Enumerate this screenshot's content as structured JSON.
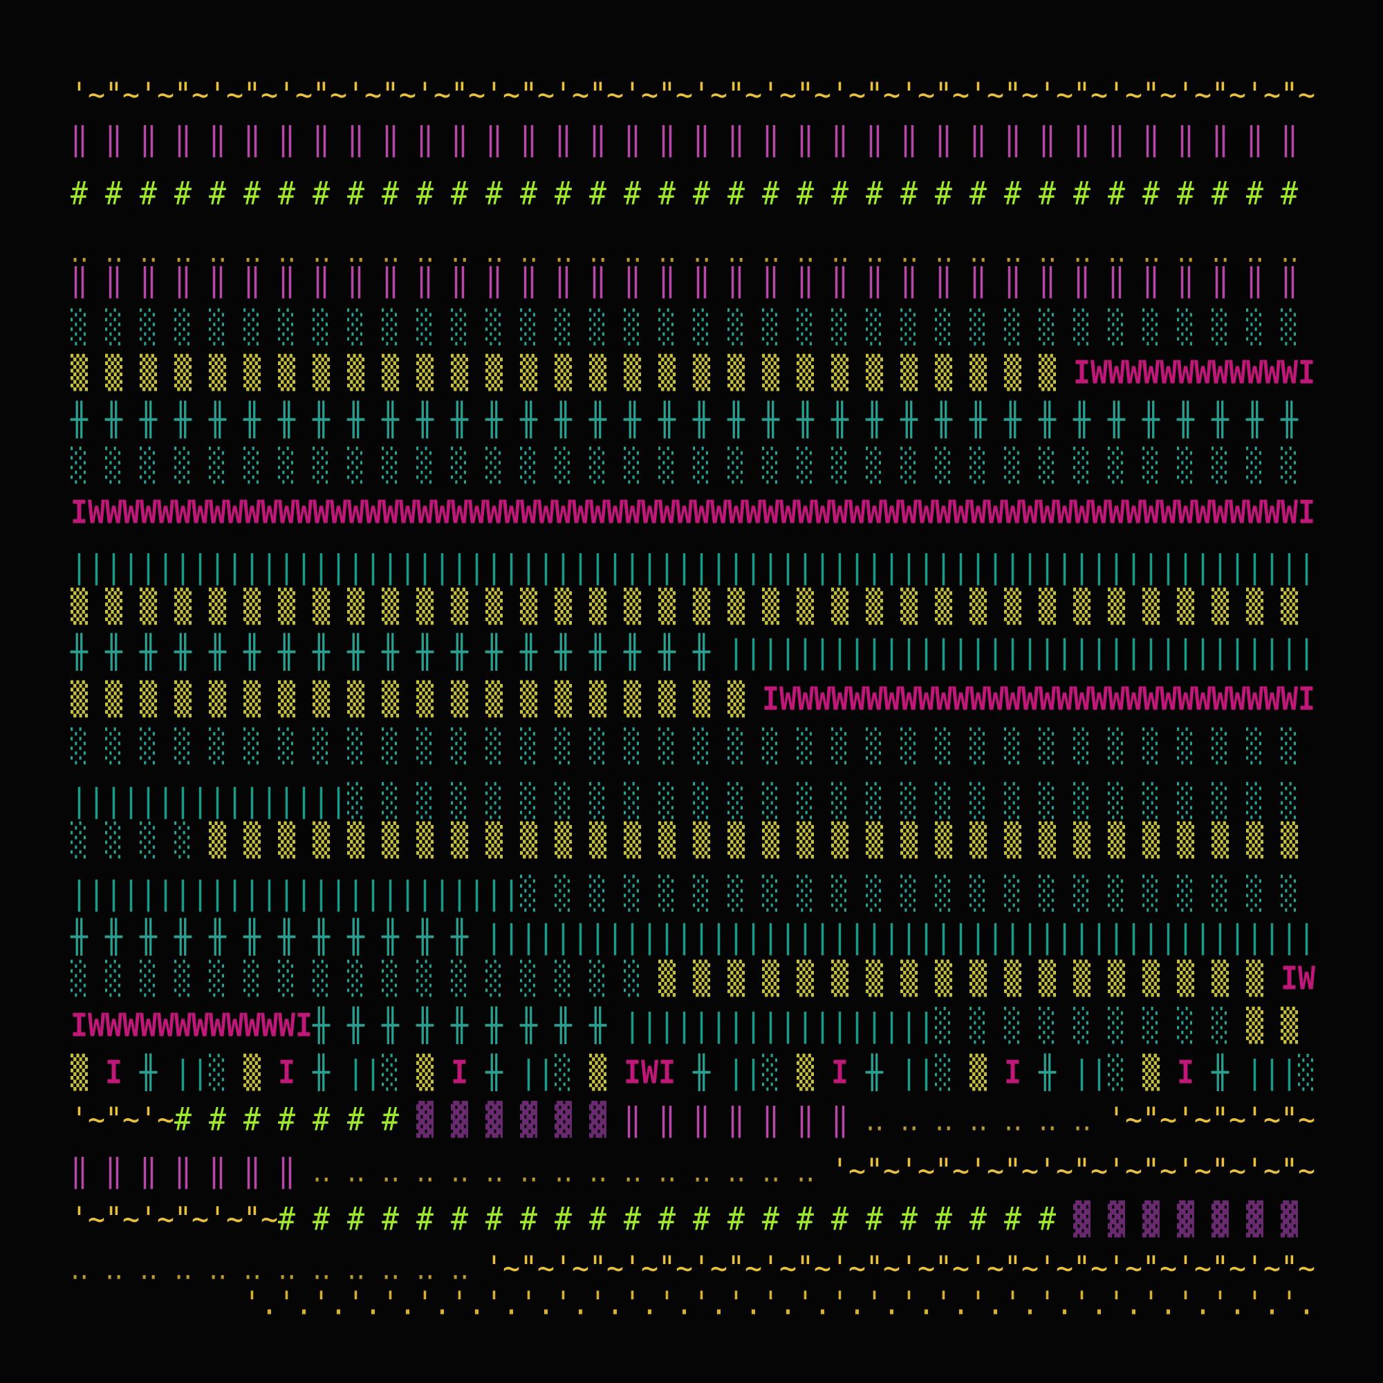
{
  "rows": [
    {
      "segments": [
        {
          "text": "'~\"~'~\"~'~\"~'~\"~'~\"~'~\"~'~\"~'~\"~'~\"~'~\"~'~\"~'~\"~'~\"~'~\"~'~\"~'~\"~'~\"~'~\"~",
          "color": "#e8c040"
        }
      ]
    },
    {
      "segments": [
        {
          "text": "‖ ‖ ‖ ‖ ‖ ‖ ‖ ‖ ‖ ‖ ‖ ‖ ‖ ‖ ‖ ‖ ‖ ‖ ‖ ‖ ‖ ‖ ‖ ‖ ‖ ‖ ‖ ‖ ‖ ‖ ‖ ‖ ‖ ‖ ‖ ‖ ",
          "color": "#b848a8"
        }
      ]
    },
    {
      "segments": [
        {
          "text": "# # # # # # # # # # # # # # # # # # # # # # # # # # # # # # # # # # # # ",
          "color": "#9ee82e"
        }
      ]
    },
    {
      "segments": [
        {
          "text": "‥ ‥ ‥ ‥ ‥ ‥ ‥ ‥ ‥ ‥ ‥ ‥ ‥ ‥ ‥ ‥ ‥ ‥ ‥ ‥ ‥ ‥ ‥ ‥ ‥ ‥ ‥ ‥ ‥ ‥ ‥ ‥ ‥ ‥ ‥ ‥ ",
          "color": "#b89a30"
        }
      ]
    },
    {
      "segments": [
        {
          "text": "‖ ‖ ‖ ‖ ‖ ‖ ‖ ‖ ‖ ‖ ‖ ‖ ‖ ‖ ‖ ‖ ‖ ‖ ‖ ‖ ‖ ‖ ‖ ‖ ‖ ‖ ‖ ‖ ‖ ‖ ‖ ‖ ‖ ‖ ‖ ‖ ",
          "color": "#b848a8"
        }
      ]
    },
    {
      "segments": [
        {
          "text": "░ ░ ░ ░ ░ ░ ░ ░ ░ ░ ░ ░ ░ ░ ░ ░ ░ ░ ░ ░ ░ ░ ░ ░ ░ ░ ░ ░ ░ ░ ░ ░ ░ ░ ░ ░ ",
          "color": "#2aa090"
        }
      ]
    },
    {
      "segments": [
        {
          "text": "▒ ▒ ▒ ▒ ▒ ▒ ▒ ▒ ▒ ▒ ▒ ▒ ▒ ▒ ▒ ▒ ▒ ▒ ▒ ▒ ▒ ▒ ▒ ▒ ▒ ▒ ▒ ▒ ▒ ",
          "color": "#c8c040"
        },
        {
          "text": "IWWWWWWWWWWWWI",
          "color": "#c01878"
        }
      ]
    },
    {
      "segments": [
        {
          "text": "╫ ╫ ╫ ╫ ╫ ╫ ╫ ╫ ╫ ╫ ╫ ╫ ╫ ╫ ╫ ╫ ╫ ╫ ╫ ╫ ╫ ╫ ╫ ╫ ╫ ╫ ╫ ╫ ╫ ╫ ╫ ╫ ╫ ╫ ╫ ╫ ",
          "color": "#2aa090"
        }
      ]
    },
    {
      "segments": [
        {
          "text": "░ ░ ░ ░ ░ ░ ░ ░ ░ ░ ░ ░ ░ ░ ░ ░ ░ ░ ░ ░ ░ ░ ░ ░ ░ ░ ░ ░ ░ ░ ░ ░ ░ ░ ░ ░ ",
          "color": "#2aa090"
        }
      ]
    },
    {
      "segments": [
        {
          "text": "IWWWWWWWWWWWWWWWWWWWWWWWWWWWWWWWWWWWWWWWWWWWWWWWWWWWWWWWWWWWWWWWWWWWWWWI",
          "color": "#c01878"
        }
      ]
    },
    {
      "segments": [
        {
          "text": "||||||||||||||||||||||||||||||||||||||||||||||||||||||||||||||||||||||||",
          "color": "#1a9a88"
        }
      ]
    },
    {
      "segments": [
        {
          "text": "▒ ▒ ▒ ▒ ▒ ▒ ▒ ▒ ▒ ▒ ▒ ▒ ▒ ▒ ▒ ▒ ▒ ▒ ▒ ▒ ▒ ▒ ▒ ▒ ▒ ▒ ▒ ▒ ▒ ▒ ▒ ▒ ▒ ▒ ▒ ▒ ",
          "color": "#c8c040"
        }
      ]
    },
    {
      "segments": [
        {
          "text": "╫ ╫ ╫ ╫ ╫ ╫ ╫ ╫ ╫ ╫ ╫ ╫ ╫ ╫ ╫ ╫ ╫ ╫ ╫ ",
          "color": "#2aa090"
        },
        {
          "text": "||||||||||||||||||||||||||||||||||",
          "color": "#1a9a88"
        }
      ]
    },
    {
      "segments": [
        {
          "text": "▒ ▒ ▒ ▒ ▒ ▒ ▒ ▒ ▒ ▒ ▒ ▒ ▒ ▒ ▒ ▒ ▒ ▒ ▒ ▒ ",
          "color": "#c8c040"
        },
        {
          "text": "IWWWWWWWWWWWWWWWWWWWWWWWWWWWWWWI",
          "color": "#c01878"
        }
      ]
    },
    {
      "segments": [
        {
          "text": "░ ░ ░ ░ ░ ░ ░ ░ ░ ░ ░ ░ ░ ░ ░ ░ ░ ░ ░ ░ ░ ░ ░ ░ ░ ░ ░ ░ ░ ░ ░ ░ ░ ░ ░ ░ ",
          "color": "#2aa090"
        }
      ]
    },
    {
      "segments": [
        {
          "text": "||||||||||||||||",
          "color": "#1a9a88"
        },
        {
          "text": "░ ░ ░ ░ ░ ░ ░ ░ ░ ░ ░ ░ ░ ░ ░ ░ ░ ░ ░ ░ ░ ░ ░ ░ ░ ░ ░ ░ ",
          "color": "#2aa090"
        }
      ]
    },
    {
      "segments": [
        {
          "text": "░ ░ ░ ░ ",
          "color": "#2aa090"
        },
        {
          "text": "▒ ▒ ▒ ▒ ▒ ▒ ▒ ▒ ▒ ▒ ▒ ▒ ▒ ▒ ▒ ▒ ▒ ▒ ▒ ▒ ▒ ▒ ▒ ▒ ▒ ▒ ▒ ▒ ▒ ▒ ▒ ▒ ",
          "color": "#c8c040"
        }
      ]
    },
    {
      "segments": [
        {
          "text": "||||||||||||||||||||||||||",
          "color": "#1a9a88"
        },
        {
          "text": "░ ░ ░ ░ ░ ░ ░ ░ ░ ░ ░ ░ ░ ░ ░ ░ ░ ░ ░ ░ ░ ░ ░ ",
          "color": "#2aa090"
        }
      ]
    },
    {
      "segments": [
        {
          "text": "╫ ╫ ╫ ╫ ╫ ╫ ╫ ╫ ╫ ╫ ╫ ╫ ",
          "color": "#2aa090"
        },
        {
          "text": "||||||||||||||||||||||||||||||||||||||||||||||||",
          "color": "#1a9a88"
        }
      ]
    },
    {
      "segments": [
        {
          "text": "░ ░ ░ ░ ░ ░ ░ ░ ░ ░ ░ ░ ░ ░ ░ ░ ░ ",
          "color": "#2aa090"
        },
        {
          "text": "▒ ▒ ▒ ▒ ▒ ▒ ▒ ▒ ▒ ▒ ▒ ▒ ▒ ▒ ▒ ▒ ▒ ▒ ",
          "color": "#c8c040"
        },
        {
          "text": "IW",
          "color": "#c01878"
        }
      ]
    },
    {
      "segments": [
        {
          "text": "IWWWWWWWWWWWWI",
          "color": "#c01878"
        },
        {
          "text": "╫ ╫ ╫ ╫ ╫ ╫ ╫ ╫ ╫ ",
          "color": "#2aa090"
        },
        {
          "text": "||||||||||||||||||",
          "color": "#1a9a88"
        },
        {
          "text": "░ ░ ░ ░ ░ ░ ░ ░ ░ ",
          "color": "#2aa090"
        },
        {
          "text": "▒ ▒ ",
          "color": "#c8c040"
        }
      ]
    },
    {
      "segments": [
        {
          "text": "▒ ",
          "color": "#c8c040"
        },
        {
          "text": "I ",
          "color": "#c01878"
        },
        {
          "text": "╫ ",
          "color": "#2aa090"
        },
        {
          "text": "||",
          "color": "#1a9a88"
        },
        {
          "text": "░ ",
          "color": "#2aa090"
        },
        {
          "text": "▒ ",
          "color": "#c8c040"
        },
        {
          "text": "I ",
          "color": "#c01878"
        },
        {
          "text": "╫ ",
          "color": "#2aa090"
        },
        {
          "text": "||",
          "color": "#1a9a88"
        },
        {
          "text": "░ ",
          "color": "#2aa090"
        },
        {
          "text": "▒ ",
          "color": "#c8c040"
        },
        {
          "text": "I ",
          "color": "#c01878"
        },
        {
          "text": "╫ ",
          "color": "#2aa090"
        },
        {
          "text": "||",
          "color": "#1a9a88"
        },
        {
          "text": "░ ",
          "color": "#2aa090"
        },
        {
          "text": "▒ ",
          "color": "#c8c040"
        },
        {
          "text": "IWI ",
          "color": "#c01878"
        },
        {
          "text": "╫ ",
          "color": "#2aa090"
        },
        {
          "text": "||",
          "color": "#1a9a88"
        },
        {
          "text": "░ ",
          "color": "#2aa090"
        },
        {
          "text": "▒ ",
          "color": "#c8c040"
        },
        {
          "text": "I ",
          "color": "#c01878"
        },
        {
          "text": "╫ ",
          "color": "#2aa090"
        },
        {
          "text": "||",
          "color": "#1a9a88"
        },
        {
          "text": "░ ",
          "color": "#2aa090"
        },
        {
          "text": "▒ ",
          "color": "#c8c040"
        },
        {
          "text": "I ",
          "color": "#c01878"
        },
        {
          "text": "╫ ",
          "color": "#2aa090"
        },
        {
          "text": "||",
          "color": "#1a9a88"
        },
        {
          "text": "░ ",
          "color": "#2aa090"
        },
        {
          "text": "▒ ",
          "color": "#c8c040"
        },
        {
          "text": "I ",
          "color": "#c01878"
        },
        {
          "text": "╫ ",
          "color": "#2aa090"
        },
        {
          "text": "|||",
          "color": "#1a9a88"
        },
        {
          "text": "░",
          "color": "#2aa090"
        }
      ]
    },
    {
      "segments": [
        {
          "text": "'~\"~'~",
          "color": "#e8c040"
        },
        {
          "text": "# # # # # # # ",
          "color": "#9ee82e"
        },
        {
          "text": "▓ ▓ ▓ ▓ ▓ ▓ ",
          "color": "#6a2a70"
        },
        {
          "text": "‖ ‖ ‖ ‖ ‖ ‖ ‖ ",
          "color": "#b848a8"
        },
        {
          "text": "‥ ‥ ‥ ‥ ‥ ‥ ‥ ",
          "color": "#b89a30"
        },
        {
          "text": "'~\"~'~\"~'~\"~",
          "color": "#e8c040"
        }
      ]
    },
    {
      "segments": [
        {
          "text": "‖ ‖ ‖ ‖ ‖ ‖ ‖ ",
          "color": "#b848a8"
        },
        {
          "text": "‥ ‥ ‥ ‥ ‥ ‥ ‥ ‥ ‥ ‥ ‥ ‥ ‥ ‥ ‥ ",
          "color": "#b89a30"
        },
        {
          "text": "'~\"~'~\"~'~\"~'~\"~'~\"~'~\"~'~\"~",
          "color": "#e8c040"
        }
      ]
    },
    {
      "segments": [
        {
          "text": "'~\"~'~\"~'~\"~",
          "color": "#e8c040"
        },
        {
          "text": "# # # # # # # # # # # # # # # # # # # # # # # ",
          "color": "#9ee82e"
        },
        {
          "text": "▓ ▓ ▓ ▓ ▓ ▓ ▓ ",
          "color": "#6a2a70"
        }
      ]
    },
    {
      "segments": [
        {
          "text": "‥ ‥ ‥ ‥ ‥ ‥ ‥ ‥ ‥ ‥ ‥ ‥ ",
          "color": "#b89a30"
        },
        {
          "text": "'~\"~'~\"~'~\"~'~\"~'~\"~'~\"~'~\"~'~\"~'~\"~'~\"~'~\"~'~\"~",
          "color": "#e8c040"
        }
      ]
    },
    {
      "segments": [
        {
          "text": "'.'.'.'.'.'.'.'.'.'.'.'.'.'.'.'.'.'.'.'.'.'.'.'.'.'.'.'.'.'.'.",
          "color": "#d8b030"
        }
      ]
    }
  ]
}
